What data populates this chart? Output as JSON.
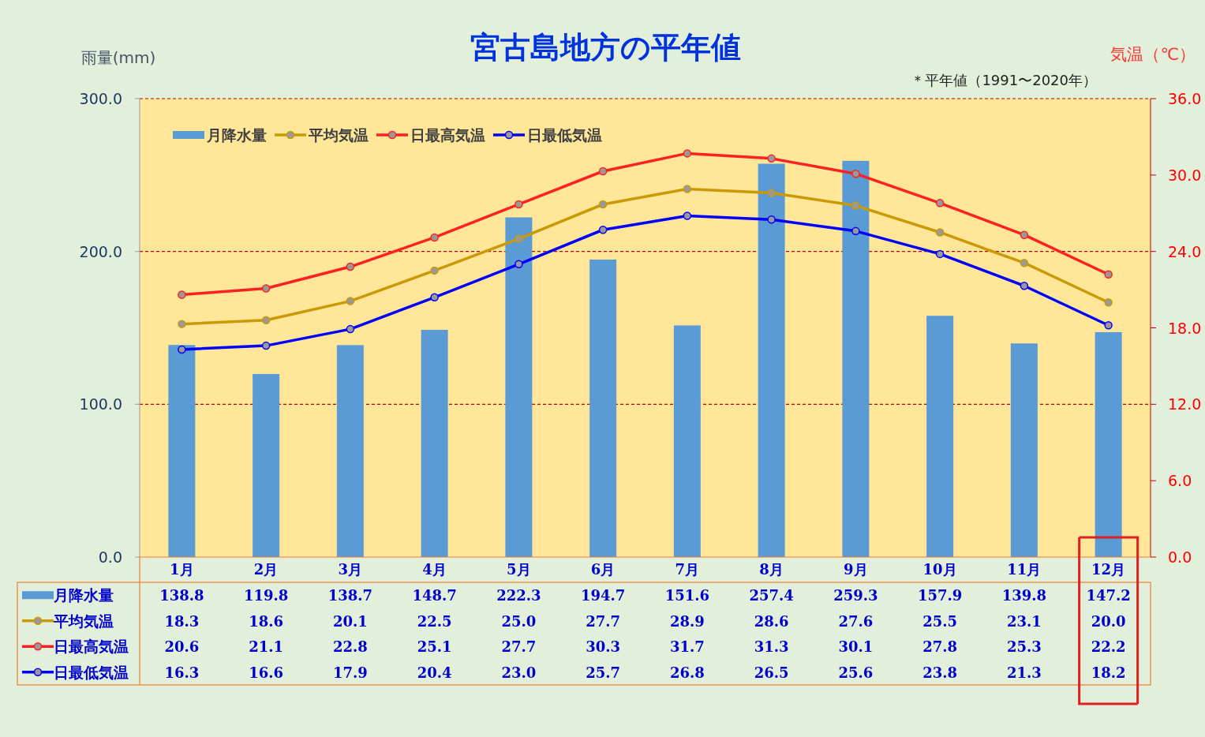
{
  "chart_data": {
    "type": "bar",
    "title": "宮古島地方の平年値",
    "ylabel": "雨量(mm)",
    "y2label": "気温（℃）",
    "annotations": [
      "＊平年値（1991〜2020年）"
    ],
    "categories": [
      "1月",
      "2月",
      "3月",
      "4月",
      "5月",
      "6月",
      "7月",
      "8月",
      "9月",
      "10月",
      "11月",
      "12月"
    ],
    "series": [
      {
        "name": "月降水量",
        "color": "#5b9bd5",
        "values": [
          138.8,
          119.8,
          138.7,
          148.7,
          222.3,
          194.7,
          151.6,
          257.4,
          259.3,
          157.9,
          139.8,
          147.2
        ],
        "value_labels": [
          "138.8",
          "119.8",
          "138.7",
          "148.7",
          "222.3",
          "194.7",
          "151.6",
          "257.4",
          "259.3",
          "157.9",
          "139.8",
          "147.2"
        ]
      },
      {
        "name": "平均気温",
        "type": "line",
        "axis": "y2",
        "color": "#c99a06",
        "values": [
          18.3,
          18.6,
          20.1,
          22.5,
          25.0,
          27.7,
          28.9,
          28.6,
          27.6,
          25.5,
          23.1,
          20.0
        ],
        "value_labels": [
          "18.3",
          "18.6",
          "20.1",
          "22.5",
          "25.0",
          "27.7",
          "28.9",
          "28.6",
          "27.6",
          "25.5",
          "23.1",
          "20.0"
        ]
      },
      {
        "name": "日最高気温",
        "type": "line",
        "axis": "y2",
        "color": "#ff2020",
        "values": [
          20.6,
          21.1,
          22.8,
          25.1,
          27.7,
          30.3,
          31.7,
          31.3,
          30.1,
          27.8,
          25.3,
          22.2
        ],
        "value_labels": [
          "20.6",
          "21.1",
          "22.8",
          "25.1",
          "27.7",
          "30.3",
          "31.7",
          "31.3",
          "30.1",
          "27.8",
          "25.3",
          "22.2"
        ]
      },
      {
        "name": "日最低気温",
        "type": "line",
        "axis": "y2",
        "color": "#0000ff",
        "values": [
          16.3,
          16.6,
          17.9,
          20.4,
          23.0,
          25.7,
          26.8,
          26.5,
          25.6,
          23.8,
          21.3,
          18.2
        ],
        "value_labels": [
          "16.3",
          "16.6",
          "17.9",
          "20.4",
          "23.0",
          "25.7",
          "26.8",
          "26.5",
          "25.6",
          "23.8",
          "21.3",
          "18.2"
        ]
      }
    ],
    "ylim": [
      0,
      300
    ],
    "yticks": [
      {
        "value": 0,
        "label": "0.0"
      },
      {
        "value": 100,
        "label": "100.0"
      },
      {
        "value": 200,
        "label": "200.0"
      },
      {
        "value": 300,
        "label": "300.0"
      }
    ],
    "y2lim": [
      0,
      36
    ],
    "y2ticks": [
      {
        "value": 0,
        "label": "0.0"
      },
      {
        "value": 6,
        "label": "6.0"
      },
      {
        "value": 12,
        "label": "12.0"
      },
      {
        "value": 18,
        "label": "18.0"
      },
      {
        "value": 24,
        "label": "24.0"
      },
      {
        "value": 30,
        "label": "30.0"
      },
      {
        "value": 36,
        "label": "36.0"
      }
    ],
    "grid": "y",
    "legend": "top left",
    "marker": "circle",
    "line_style": "solid"
  }
}
